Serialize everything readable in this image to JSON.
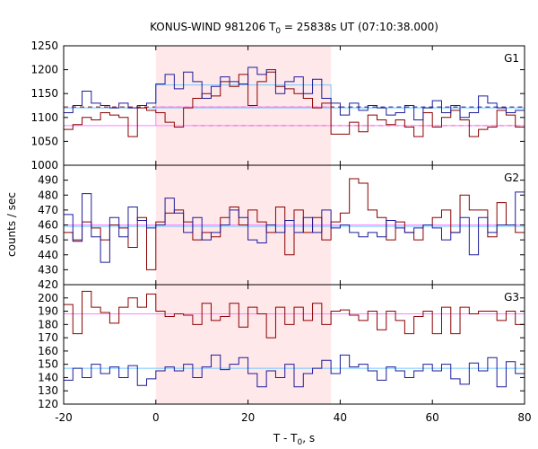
{
  "chart_data": {
    "type": "line",
    "title": "KONUS-WIND 981206 T",
    "title_sub": "0",
    "title_rest": " = 25838s UT (07:10:38.000)",
    "xlabel": "T - T",
    "xlabel_sub": "0",
    "xlabel_rest": ", s",
    "ylabel": "counts / sec",
    "xlim": [
      -20,
      80
    ],
    "x_ticks": [
      -20,
      0,
      20,
      40,
      60,
      80
    ],
    "shaded_interval": [
      0,
      38
    ],
    "colors": {
      "red": "#8b0000",
      "blue": "#1c1c9a",
      "pink": "#ff80ff",
      "cyan": "#70c8ff",
      "shade": "#ffe8ea"
    },
    "panels": [
      {
        "name": "G1",
        "ylim": [
          1000,
          1250
        ],
        "y_ticks": [
          1000,
          1050,
          1100,
          1150,
          1200,
          1250
        ],
        "series": [
          {
            "color": "red",
            "x": [
              -20,
              -18,
              -16,
              -14,
              -12,
              -10,
              -8,
              -6,
              -4,
              -2,
              0,
              2,
              4,
              6,
              8,
              10,
              12,
              14,
              16,
              18,
              20,
              22,
              24,
              26,
              28,
              30,
              32,
              34,
              36,
              38,
              40,
              42,
              44,
              46,
              48,
              50,
              52,
              54,
              56,
              58,
              60,
              62,
              64,
              66,
              68,
              70,
              72,
              74,
              76,
              78
            ],
            "y": [
              1075,
              1085,
              1100,
              1095,
              1110,
              1105,
              1100,
              1060,
              1120,
              1115,
              1110,
              1090,
              1080,
              1120,
              1140,
              1150,
              1145,
              1175,
              1165,
              1190,
              1125,
              1175,
              1195,
              1165,
              1160,
              1150,
              1140,
              1120,
              1130,
              1065,
              1065,
              1090,
              1070,
              1105,
              1095,
              1085,
              1095,
              1080,
              1060,
              1110,
              1080,
              1100,
              1115,
              1095,
              1060,
              1075,
              1080,
              1115,
              1105,
              1080
            ]
          },
          {
            "color": "blue",
            "x": [
              -20,
              -18,
              -16,
              -14,
              -12,
              -10,
              -8,
              -6,
              -4,
              -2,
              0,
              2,
              4,
              6,
              8,
              10,
              12,
              14,
              16,
              18,
              20,
              22,
              24,
              26,
              28,
              30,
              32,
              34,
              36,
              38,
              40,
              42,
              44,
              46,
              48,
              50,
              52,
              54,
              56,
              58,
              60,
              62,
              64,
              66,
              68,
              70,
              72,
              74,
              76,
              78
            ],
            "y": [
              1110,
              1125,
              1155,
              1130,
              1125,
              1120,
              1130,
              1120,
              1125,
              1130,
              1170,
              1190,
              1160,
              1195,
              1175,
              1140,
              1165,
              1185,
              1175,
              1170,
              1205,
              1190,
              1200,
              1150,
              1175,
              1185,
              1150,
              1180,
              1140,
              1130,
              1105,
              1130,
              1115,
              1125,
              1120,
              1105,
              1110,
              1125,
              1095,
              1120,
              1135,
              1110,
              1125,
              1100,
              1110,
              1145,
              1130,
              1120,
              1110,
              1115
            ]
          }
        ],
        "refs": [
          {
            "color": "red",
            "dash": true,
            "x": [
              -20,
              40
            ],
            "y": 1122
          },
          {
            "color": "red",
            "dash": true,
            "x": [
              8,
              80
            ],
            "y": 1083
          },
          {
            "color": "pink",
            "dash": false,
            "x": [
              -20,
              80
            ],
            "y": 1083
          },
          {
            "color": "cyan",
            "dash": false,
            "x": [
              -20,
              80
            ],
            "y": 1120
          },
          {
            "color": "blue",
            "dash": true,
            "x": [
              40,
              80
            ],
            "y": 1122
          }
        ],
        "boxes": [
          {
            "color": "cyan",
            "x": [
              0,
              38
            ],
            "y": [
              1120,
              1168
            ]
          },
          {
            "color": "pink",
            "x": [
              0,
              38
            ],
            "y": [
              1083,
              1122
            ]
          }
        ]
      },
      {
        "name": "G2",
        "ylim": [
          420,
          500
        ],
        "y_ticks": [
          420,
          430,
          440,
          450,
          460,
          470,
          480,
          490
        ],
        "series": [
          {
            "color": "red",
            "x": [
              -20,
              -18,
              -16,
              -14,
              -12,
              -10,
              -8,
              -6,
              -4,
              -2,
              0,
              2,
              4,
              6,
              8,
              10,
              12,
              14,
              16,
              18,
              20,
              22,
              24,
              26,
              28,
              30,
              32,
              34,
              36,
              38,
              40,
              42,
              44,
              46,
              48,
              50,
              52,
              54,
              56,
              58,
              60,
              62,
              64,
              66,
              68,
              70,
              72,
              74,
              76,
              78
            ],
            "y": [
              455,
              450,
              462,
              458,
              450,
              460,
              458,
              445,
              465,
              430,
              462,
              468,
              470,
              462,
              450,
              455,
              452,
              465,
              472,
              460,
              470,
              462,
              455,
              472,
              440,
              470,
              455,
              465,
              450,
              462,
              468,
              491,
              488,
              470,
              465,
              450,
              462,
              455,
              450,
              460,
              465,
              470,
              455,
              480,
              470,
              470,
              452,
              475,
              460,
              455
            ]
          },
          {
            "color": "blue",
            "x": [
              -20,
              -18,
              -16,
              -14,
              -12,
              -10,
              -8,
              -6,
              -4,
              -2,
              0,
              2,
              4,
              6,
              8,
              10,
              12,
              14,
              16,
              18,
              20,
              22,
              24,
              26,
              28,
              30,
              32,
              34,
              36,
              38,
              40,
              42,
              44,
              46,
              48,
              50,
              52,
              54,
              56,
              58,
              60,
              62,
              64,
              66,
              68,
              70,
              72,
              74,
              76,
              78
            ],
            "y": [
              467,
              449,
              481,
              452,
              435,
              465,
              452,
              472,
              463,
              458,
              460,
              478,
              468,
              455,
              465,
              450,
              455,
              460,
              470,
              465,
              450,
              448,
              460,
              455,
              463,
              455,
              465,
              455,
              470,
              458,
              460,
              455,
              452,
              455,
              452,
              463,
              458,
              455,
              458,
              460,
              458,
              450,
              455,
              465,
              440,
              465,
              455,
              460,
              460,
              482
            ]
          }
        ],
        "refs": [
          {
            "color": "pink",
            "dash": false,
            "x": [
              -20,
              80
            ],
            "y": 460
          },
          {
            "color": "cyan",
            "dash": false,
            "x": [
              -20,
              80
            ],
            "y": 459
          }
        ],
        "boxes": []
      },
      {
        "name": "G3",
        "ylim": [
          120,
          210
        ],
        "y_ticks": [
          120,
          130,
          140,
          150,
          160,
          170,
          180,
          190,
          200
        ],
        "series": [
          {
            "color": "red",
            "x": [
              -20,
              -18,
              -16,
              -14,
              -12,
              -10,
              -8,
              -6,
              -4,
              -2,
              0,
              2,
              4,
              6,
              8,
              10,
              12,
              14,
              16,
              18,
              20,
              22,
              24,
              26,
              28,
              30,
              32,
              34,
              36,
              38,
              40,
              42,
              44,
              46,
              48,
              50,
              52,
              54,
              56,
              58,
              60,
              62,
              64,
              66,
              68,
              70,
              72,
              74,
              76,
              78
            ],
            "y": [
              195,
              173,
              205,
              193,
              189,
              181,
              193,
              200,
              193,
              203,
              190,
              186,
              188,
              187,
              180,
              196,
              183,
              186,
              196,
              178,
              193,
              188,
              170,
              193,
              180,
              193,
              183,
              196,
              180,
              190,
              191,
              187,
              183,
              190,
              176,
              190,
              183,
              173,
              186,
              190,
              173,
              193,
              173,
              193,
              188,
              190,
              190,
              183,
              190,
              180
            ]
          },
          {
            "color": "blue",
            "x": [
              -20,
              -18,
              -16,
              -14,
              -12,
              -10,
              -8,
              -6,
              -4,
              -2,
              0,
              2,
              4,
              6,
              8,
              10,
              12,
              14,
              16,
              18,
              20,
              22,
              24,
              26,
              28,
              30,
              32,
              34,
              36,
              38,
              40,
              42,
              44,
              46,
              48,
              50,
              52,
              54,
              56,
              58,
              60,
              62,
              64,
              66,
              68,
              70,
              72,
              74,
              76,
              78
            ],
            "y": [
              138,
              147,
              140,
              150,
              143,
              148,
              140,
              149,
              134,
              139,
              145,
              148,
              145,
              150,
              140,
              148,
              157,
              146,
              150,
              155,
              143,
              133,
              145,
              140,
              150,
              133,
              143,
              147,
              153,
              143,
              157,
              148,
              150,
              145,
              138,
              148,
              145,
              140,
              145,
              150,
              145,
              150,
              139,
              135,
              151,
              145,
              155,
              133,
              152,
              143
            ]
          }
        ],
        "refs": [
          {
            "color": "pink",
            "dash": false,
            "x": [
              -20,
              80
            ],
            "y": 188
          },
          {
            "color": "cyan",
            "dash": false,
            "x": [
              -20,
              80
            ],
            "y": 147
          }
        ],
        "boxes": []
      }
    ]
  }
}
